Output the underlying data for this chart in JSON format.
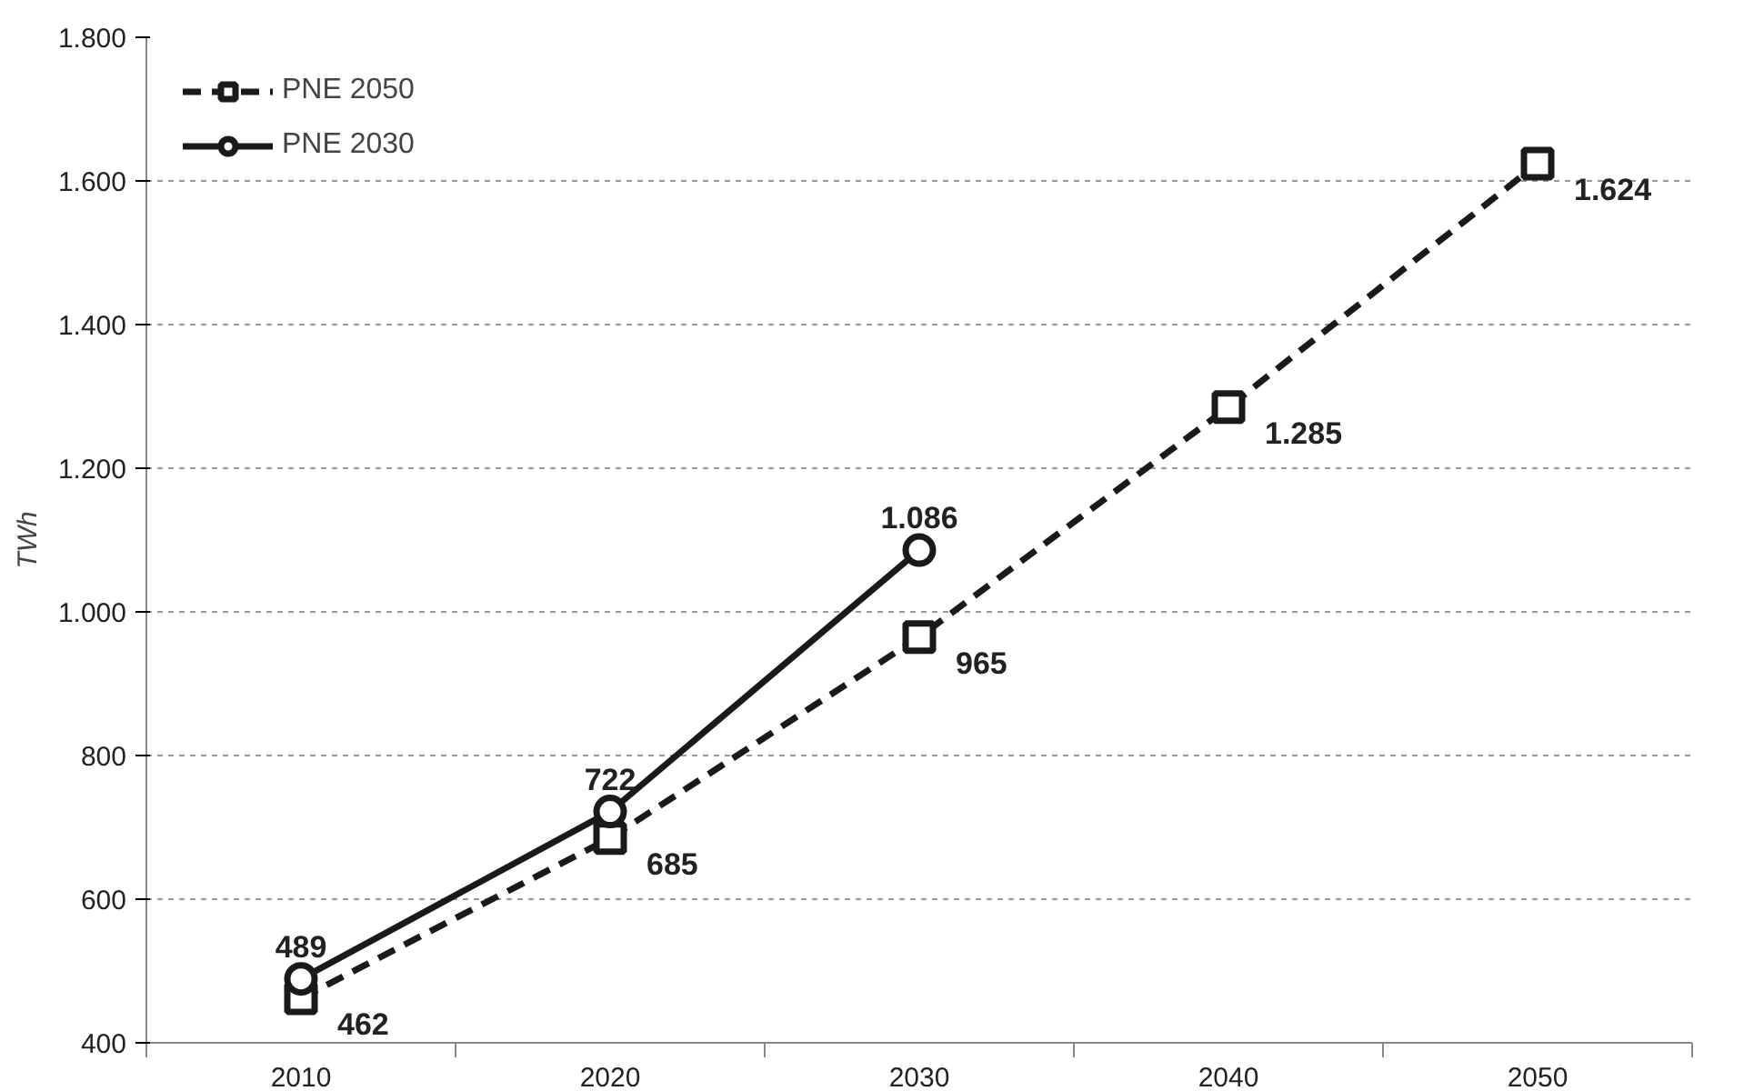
{
  "chart_data": {
    "type": "line",
    "ylabel": "TWh",
    "categories": [
      "2010",
      "2020",
      "2030",
      "2040",
      "2050"
    ],
    "ylim": [
      400,
      1800
    ],
    "yticks": [
      {
        "value": 400,
        "label": "400"
      },
      {
        "value": 600,
        "label": "600"
      },
      {
        "value": 800,
        "label": "800"
      },
      {
        "value": 1000,
        "label": "1.000"
      },
      {
        "value": 1200,
        "label": "1.200"
      },
      {
        "value": 1400,
        "label": "1.400"
      },
      {
        "value": 1600,
        "label": "1.600"
      },
      {
        "value": 1800,
        "label": "1.800"
      }
    ],
    "grid": "y",
    "legend": "top left",
    "series": [
      {
        "name": "PNE 2050",
        "color": "#1a1a1a",
        "marker": "square",
        "line_style": "dashed",
        "values": [
          462,
          685,
          965,
          1285,
          1624
        ],
        "value_labels": [
          "462",
          "685",
          "965",
          "1.285",
          "1.624"
        ]
      },
      {
        "name": "PNE 2030",
        "color": "#1a1a1a",
        "marker": "circle",
        "line_style": "solid",
        "values": [
          489,
          722,
          1086,
          null,
          null
        ],
        "value_labels": [
          "489",
          "722",
          "1.086",
          null,
          null
        ]
      }
    ]
  }
}
